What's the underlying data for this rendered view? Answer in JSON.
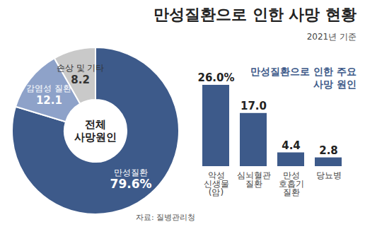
{
  "title": "만성질환으로 인한 사망 현황",
  "subtitle": "2021년 기준",
  "source": "자료: 질병관리청",
  "chart_data": [
    {
      "type": "pie",
      "annotation": "전체 사망원인",
      "categories": [
        "만성질환",
        "감염성 질환",
        "손상 및 기타"
      ],
      "values": [
        79.6,
        12.1,
        8.2
      ],
      "value_labels": [
        "79.6%",
        "12.1",
        "8.2"
      ],
      "colors": [
        "#3d5a8a",
        "#8ea2c9",
        "#c9c9c9"
      ],
      "data_labels": true
    },
    {
      "type": "bar",
      "title": "만성질환으로 인한 주요 사망 원인",
      "categories": [
        "악성 신생물 (암)",
        "심뇌혈관 질환",
        "만성 호흡기 질환",
        "당뇨병"
      ],
      "values": [
        26.0,
        17.0,
        4.4,
        2.8
      ],
      "value_labels": [
        "26.0%",
        "17.0",
        "4.4",
        "2.8"
      ],
      "color": "#3d5a8a",
      "ylim": [
        0,
        26
      ],
      "data_labels": true,
      "tick_labels": "x"
    }
  ]
}
